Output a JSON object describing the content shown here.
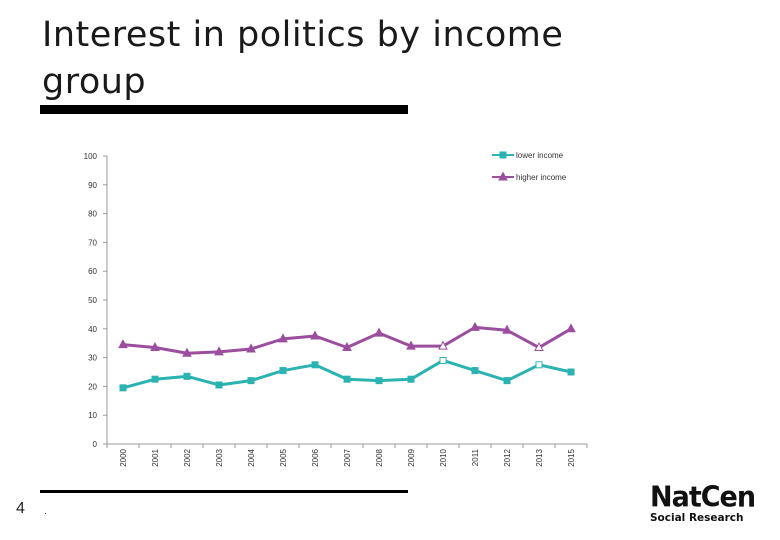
{
  "slide": {
    "title": "Interest in politics by income group",
    "page_number": "4",
    "footer_mark": ".",
    "logo_main": "NatCen",
    "logo_sub": "Social Research"
  },
  "chart_data": {
    "type": "line",
    "title": "",
    "xlabel": "",
    "ylabel": "",
    "ylim": [
      0,
      100
    ],
    "yticks": [
      0,
      10,
      20,
      30,
      40,
      50,
      60,
      70,
      80,
      90,
      100
    ],
    "grid": false,
    "legend_position": "top-right",
    "categories": [
      "2000",
      "2001",
      "2002",
      "2003",
      "2004",
      "2005",
      "2006",
      "2007",
      "2008",
      "2009",
      "2010",
      "2011",
      "2012",
      "2013",
      "2015"
    ],
    "series": [
      {
        "name": "lower income",
        "color": "#2ab3b0",
        "marker": "square",
        "values": [
          19.5,
          22.5,
          23.5,
          20.5,
          22,
          25.5,
          27.5,
          22.5,
          22,
          22.5,
          29,
          25.5,
          22,
          27.5,
          25
        ],
        "hollow_points": [
          10,
          13
        ]
      },
      {
        "name": "higher income",
        "color": "#9b4d9e",
        "marker": "triangle",
        "values": [
          34.5,
          33.5,
          31.5,
          32,
          33,
          36.5,
          37.5,
          33.5,
          38.5,
          34,
          34,
          40.5,
          39.5,
          33.5,
          40
        ],
        "hollow_points": [
          10,
          13
        ]
      }
    ]
  }
}
